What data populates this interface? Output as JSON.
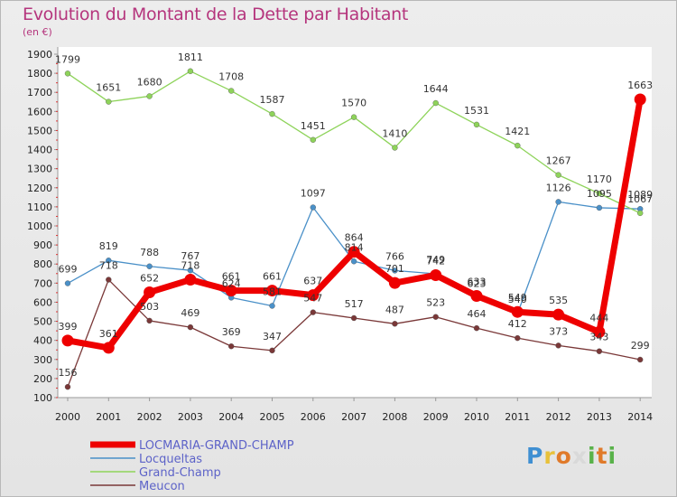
{
  "title": "Evolution du Montant de la Dette par Habitant",
  "subtitle": "(en €)",
  "logo": "Proxiti",
  "colors": {
    "background": "#e9e9e9",
    "title": "#b5357d",
    "legend_text": "#5d63c8"
  },
  "chart_data": {
    "type": "line",
    "title": "Evolution du Montant de la Dette par Habitant",
    "ylabel": "(en €)",
    "xlabel": "",
    "ylim": [
      100,
      1900
    ],
    "yticks": [
      100,
      200,
      300,
      400,
      500,
      600,
      700,
      800,
      900,
      1000,
      1100,
      1200,
      1300,
      1400,
      1500,
      1600,
      1700,
      1800,
      1900
    ],
    "grid": false,
    "legend_position": "bottom-left",
    "x": [
      "2000",
      "2001",
      "2002",
      "2003",
      "2004",
      "2005",
      "2006",
      "2007",
      "2008",
      "2009",
      "2010",
      "2011",
      "2012",
      "2013",
      "2014"
    ],
    "series": [
      {
        "name": "LOCMARIA-GRAND-CHAMP",
        "color": "#ee0000",
        "style": "thick",
        "values": [
          399,
          361,
          652,
          718,
          661,
          661,
          637,
          864,
          701,
          742,
          633,
          549,
          535,
          444,
          1663
        ]
      },
      {
        "name": "Locqueltas",
        "color": "#4a90c8",
        "style": "thin",
        "values": [
          699,
          819,
          788,
          767,
          624,
          581,
          1097,
          814,
          766,
          749,
          623,
          540,
          1126,
          1095,
          1089
        ]
      },
      {
        "name": "Grand-Champ",
        "color": "#8ed35a",
        "style": "thin",
        "values": [
          1799,
          1651,
          1680,
          1811,
          1708,
          1587,
          1451,
          1570,
          1410,
          1644,
          1531,
          1421,
          1267,
          1170,
          1067
        ]
      },
      {
        "name": "Meucon",
        "color": "#7a3838",
        "style": "thin",
        "values": [
          156,
          718,
          503,
          469,
          369,
          347,
          547,
          517,
          487,
          523,
          464,
          412,
          373,
          343,
          299
        ]
      }
    ]
  }
}
